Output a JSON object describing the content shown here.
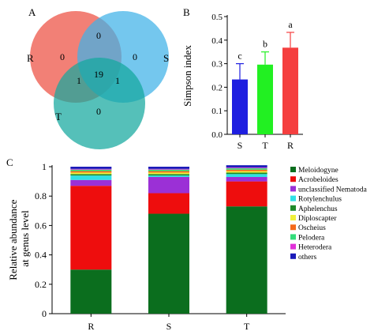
{
  "panels": {
    "a": {
      "letter": "A",
      "sets": [
        {
          "label": "R",
          "color": "#f06a5e"
        },
        {
          "label": "S",
          "color": "#3fb2e8"
        },
        {
          "label": "T",
          "color": "#13a89e"
        }
      ],
      "regions": {
        "r_only": "0",
        "s_only": "0",
        "t_only": "0",
        "rs": "0",
        "rt": "1",
        "st": "1",
        "rst": "19"
      }
    },
    "b": {
      "letter": "B"
    },
    "c": {
      "letter": "C"
    }
  },
  "chart_data": [
    {
      "type": "bar",
      "ylabel": "Simpson index",
      "categories": [
        "S",
        "T",
        "R"
      ],
      "values": [
        0.233,
        0.296,
        0.368
      ],
      "errors": [
        0.067,
        0.054,
        0.065
      ],
      "significance": [
        "c",
        "b",
        "a"
      ],
      "colors": [
        "#1f1fe0",
        "#22f022",
        "#f53f3f"
      ],
      "ylim": [
        0.0,
        0.5
      ],
      "yticks": [
        "0.0",
        "0.1",
        "0.2",
        "0.3",
        "0.4",
        "0.5"
      ]
    },
    {
      "type": "bar",
      "stacked": true,
      "ylabel": "Relative abundance at genus level",
      "ylabel_lines": [
        "Relative abundance",
        "at genus level"
      ],
      "categories": [
        "R",
        "S",
        "T"
      ],
      "ylim": [
        0,
        1
      ],
      "yticks": [
        "0",
        "0.2",
        "0.4",
        "0.6",
        "0.8",
        "1"
      ],
      "legend_position": "right",
      "series": [
        {
          "name": "Meloidogyne",
          "color": "#0b6e1e",
          "values": [
            0.3,
            0.68,
            0.73
          ]
        },
        {
          "name": "Acrobeloides",
          "color": "#ee0d0d",
          "values": [
            0.57,
            0.14,
            0.17
          ]
        },
        {
          "name": "unclassified Nematoda",
          "color": "#9b30d6",
          "values": [
            0.04,
            0.11,
            0.03
          ]
        },
        {
          "name": "Rotylenchulus",
          "color": "#2ee0e6",
          "values": [
            0.03,
            0.01,
            0.02
          ]
        },
        {
          "name": "Aphelenchus",
          "color": "#1d8a2a",
          "values": [
            0.01,
            0.01,
            0.01
          ]
        },
        {
          "name": "Diploscapter",
          "color": "#f0f03a",
          "values": [
            0.01,
            0.01,
            0.01
          ]
        },
        {
          "name": "Oscheius",
          "color": "#f56a1a",
          "values": [
            0.01,
            0.01,
            0.01
          ]
        },
        {
          "name": "Pelodera",
          "color": "#33dd7a",
          "values": [
            0.01,
            0.01,
            0.01
          ]
        },
        {
          "name": "Heterodera",
          "color": "#e030d8",
          "values": [
            0.005,
            0.005,
            0.005
          ]
        },
        {
          "name": "others",
          "color": "#1a1ab8",
          "values": [
            0.015,
            0.015,
            0.015
          ]
        }
      ]
    }
  ]
}
